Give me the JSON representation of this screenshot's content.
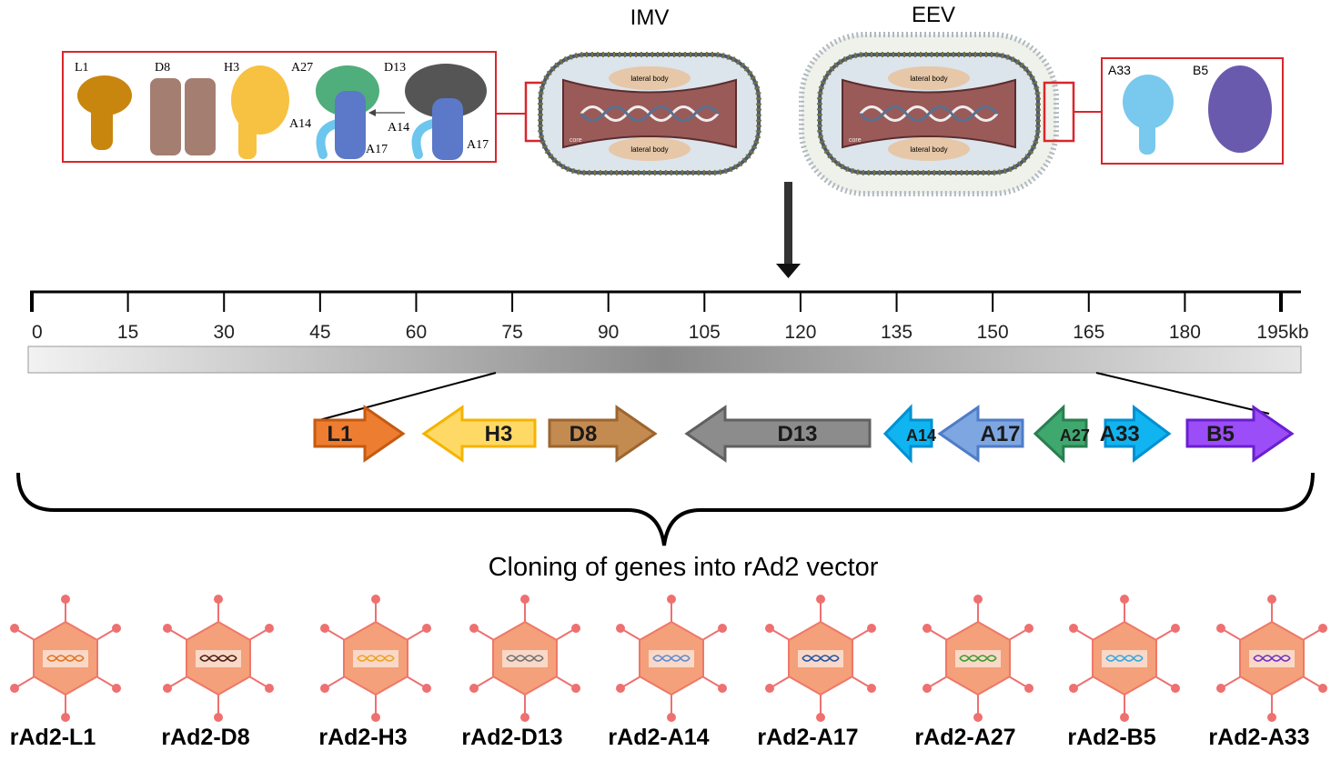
{
  "virions": {
    "imv": {
      "label": "IMV",
      "lateral_body": "lateral body",
      "core": "core"
    },
    "eev": {
      "label": "EEV",
      "lateral_body": "lateral body",
      "core": "core"
    }
  },
  "imv_proteins": [
    {
      "label": "L1",
      "color": "#C8860F"
    },
    {
      "label": "D8",
      "color": "#A57E72"
    },
    {
      "label": "H3",
      "color": "#F7C142"
    },
    {
      "label": "A27",
      "color": "#4FAE7C"
    },
    {
      "label": "D13",
      "color": "#555555"
    },
    {
      "label": "A14",
      "color": "#6CC6EE"
    },
    {
      "label": "A17",
      "color": "#5C78C8"
    }
  ],
  "eev_proteins": [
    {
      "label": "A33",
      "color": "#79C8EE"
    },
    {
      "label": "B5",
      "color": "#6A5AAE"
    }
  ],
  "genome": {
    "unit": "kb",
    "ticks": [
      "0",
      "15",
      "30",
      "45",
      "60",
      "75",
      "90",
      "105",
      "120",
      "135",
      "150",
      "165",
      "180",
      "195kb"
    ],
    "tick_values": [
      0,
      15,
      30,
      45,
      60,
      75,
      90,
      105,
      120,
      135,
      150,
      165,
      180,
      195
    ]
  },
  "genes": [
    {
      "label": "L1",
      "direction": "right",
      "color": "#ED7D31",
      "stroke": "#C55A11"
    },
    {
      "label": "H3",
      "direction": "left",
      "color": "#FFD966",
      "stroke": "#F4B400"
    },
    {
      "label": "D8",
      "direction": "right",
      "color": "#C48B50",
      "stroke": "#9C6530"
    },
    {
      "label": "D13",
      "direction": "left",
      "color": "#8C8C8C",
      "stroke": "#606060"
    },
    {
      "label": "A14",
      "direction": "left",
      "color": "#10B4F0",
      "stroke": "#0090D0"
    },
    {
      "label": "A17",
      "direction": "left",
      "color": "#7EA6E0",
      "stroke": "#4F7CC8"
    },
    {
      "label": "A27",
      "direction": "left",
      "color": "#3FA86E",
      "stroke": "#2A7E50"
    },
    {
      "label": "A33",
      "direction": "right",
      "color": "#10B4F0",
      "stroke": "#0090D0"
    },
    {
      "label": "B5",
      "direction": "right",
      "color": "#9B4DF7",
      "stroke": "#6A1FD0"
    }
  ],
  "cloning_caption": "Cloning of genes into rAd2 vector",
  "vectors": [
    {
      "label": "rAd2-L1",
      "dna_color": "#E3701F"
    },
    {
      "label": "rAd2-D8",
      "dna_color": "#4A1A10"
    },
    {
      "label": "rAd2-H3",
      "dna_color": "#F0A020"
    },
    {
      "label": "rAd2-D13",
      "dna_color": "#707070"
    },
    {
      "label": "rAd2-A14",
      "dna_color": "#5A8AD0"
    },
    {
      "label": "rAd2-A17",
      "dna_color": "#2050A0"
    },
    {
      "label": "rAd2-A27",
      "dna_color": "#3A9A30"
    },
    {
      "label": "rAd2-B5",
      "dna_color": "#30A8E0"
    },
    {
      "label": "rAd2-A33",
      "dna_color": "#6A30C0"
    }
  ]
}
